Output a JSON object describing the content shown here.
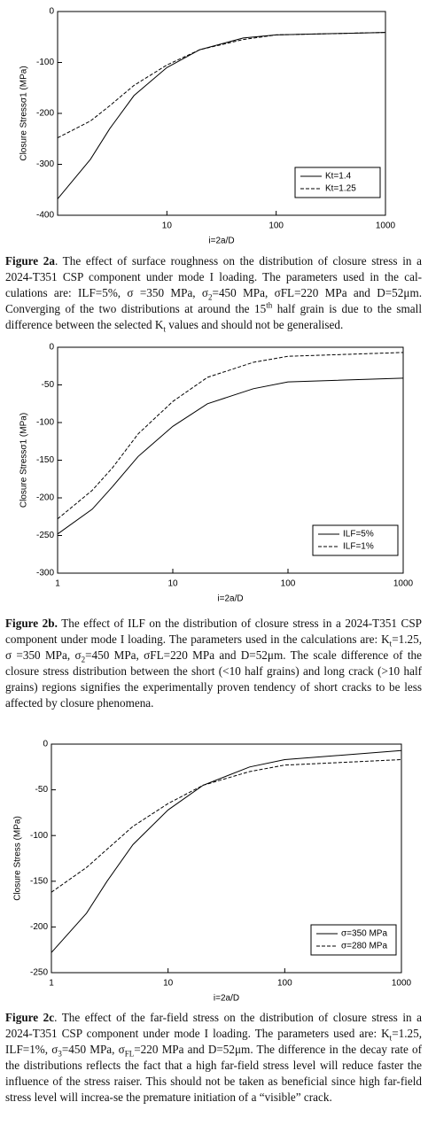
{
  "chart_data": [
    {
      "type": "line",
      "xscale": "log",
      "x_label": "i=2a/D",
      "y_label": "Closure Stressσ1 (MPa)",
      "xlim": [
        1,
        1000
      ],
      "xticks": [
        10,
        100,
        1000
      ],
      "ylim": [
        -400,
        0
      ],
      "yticks": [
        0,
        -100,
        -200,
        -300,
        -400
      ],
      "legend": "lower right",
      "x": [
        1,
        2,
        3,
        5,
        10,
        20,
        50,
        100,
        1000
      ],
      "series": [
        {
          "name": "Kt=1.4",
          "color": "#000000",
          "dash": "solid",
          "values": [
            -368,
            -290,
            -230,
            -165,
            -110,
            -75,
            -52,
            -46,
            -41
          ]
        },
        {
          "name": "Kt=1.25",
          "color": "#000000",
          "dash": "dashed",
          "values": [
            -248,
            -215,
            -185,
            -145,
            -105,
            -75,
            -55,
            -46,
            -41
          ]
        }
      ]
    },
    {
      "type": "line",
      "xscale": "log",
      "x_label": "i=2a/D",
      "y_label": "Closure Stressσ1 (MPa)",
      "xlim": [
        1,
        1000
      ],
      "xticks": [
        1,
        10,
        100,
        1000
      ],
      "ylim": [
        -300,
        0
      ],
      "yticks": [
        0,
        -50,
        -100,
        -150,
        -200,
        -250,
        -300
      ],
      "legend": "lower right",
      "x": [
        1,
        2,
        3,
        5,
        10,
        20,
        50,
        100,
        1000
      ],
      "series": [
        {
          "name": "ILF=5%",
          "color": "#000000",
          "dash": "solid",
          "values": [
            -248,
            -215,
            -185,
            -145,
            -105,
            -75,
            -55,
            -46,
            -41
          ]
        },
        {
          "name": "ILF=1%",
          "color": "#000000",
          "dash": "dashed",
          "values": [
            -228,
            -190,
            -160,
            -115,
            -72,
            -40,
            -20,
            -12,
            -7
          ]
        }
      ]
    },
    {
      "type": "line",
      "xscale": "log",
      "x_label": "i=2a/D",
      "y_label": "Closure Stress (MPa)",
      "xlim": [
        1,
        1000
      ],
      "xticks": [
        1,
        10,
        100,
        1000
      ],
      "ylim": [
        -250,
        0
      ],
      "yticks": [
        0,
        -50,
        -100,
        -150,
        -200,
        -250
      ],
      "legend": "lower right",
      "x": [
        1,
        2,
        3,
        5,
        10,
        20,
        50,
        100,
        1000
      ],
      "series": [
        {
          "name": "σ=350 MPa",
          "color": "#000000",
          "dash": "solid",
          "values": [
            -228,
            -185,
            -150,
            -110,
            -72,
            -45,
            -25,
            -17,
            -7
          ]
        },
        {
          "name": "σ=280 MPa",
          "color": "#000000",
          "dash": "dashed",
          "values": [
            -162,
            -135,
            -115,
            -90,
            -65,
            -45,
            -30,
            -23,
            -17
          ]
        }
      ]
    }
  ],
  "captions": [
    {
      "label": "Figure 2a",
      "runs": [
        {
          "text": ". The effect of surface roughness on the distribution of closure stress in a 2024-T351 CSP component under mode I loading. The parameters used in the cal-culations are: ILF=5%, σ =350 MPa, σ"
        },
        {
          "text": "2",
          "style": "sub"
        },
        {
          "text": "=450 MPa, σFL=220 MPa and D=52μm. Converging of the two distributions at around the 15"
        },
        {
          "text": "th",
          "style": "sup"
        },
        {
          "text": " half grain is due to the small difference between the selected K"
        },
        {
          "text": "t",
          "style": "sub"
        },
        {
          "text": " values and should not be generalised."
        }
      ]
    },
    {
      "label": "Figure 2b.",
      "runs": [
        {
          "text": " The effect of ILF on the distribution of closure stress in a 2024-T351 CSP component under mode I loading. The parameters used in the calculations are: K"
        },
        {
          "text": "t",
          "style": "sub"
        },
        {
          "text": "=1.25, σ =350 MPa, σ"
        },
        {
          "text": "2",
          "style": "sub"
        },
        {
          "text": "=450 MPa, σFL=220 MPa and D=52μm. The scale difference of the closure stress distribution between the short (<10 half grains) and long crack (>10 half grains) regions signifies the experimentally proven tendency of short cracks to be less affected by closure phenomena."
        }
      ]
    },
    {
      "label": "Figure 2c",
      "runs": [
        {
          "text": ". The effect of the far-field stress on the distribution of closure stress in a 2024-T351 CSP component under mode I loading. The parameters used are: K"
        },
        {
          "text": "t",
          "style": "sub"
        },
        {
          "text": "=1.25, ILF=1%, σ"
        },
        {
          "text": "3",
          "style": "sub"
        },
        {
          "text": "=450 MPa, σ"
        },
        {
          "text": "FL",
          "style": "sub"
        },
        {
          "text": "=220 MPa and D=52μm. The difference in the decay rate of the distributions reflects the fact that a high far-field stress level will reduce faster the influence of the stress raiser. This should not be taken as beneficial since high far-field stress level will increa-se the premature initiation of a “visible” crack."
        }
      ]
    }
  ]
}
